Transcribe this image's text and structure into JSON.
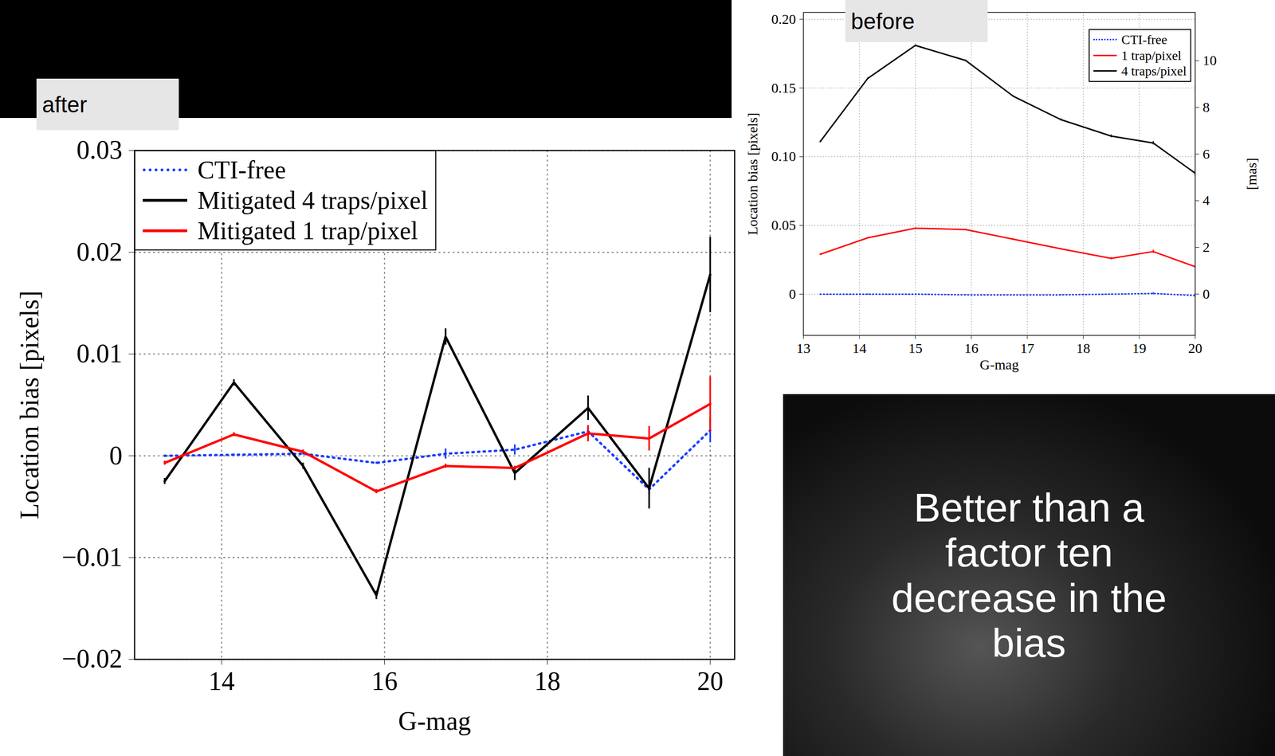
{
  "chart_data": [
    {
      "type": "line",
      "title": "after",
      "x": [
        13.3,
        14.15,
        15.0,
        15.9,
        16.75,
        17.6,
        18.5,
        19.25,
        20.0
      ],
      "xlabel": "G-mag",
      "ylabel": "Location bias [pixels]",
      "xlim": [
        12.93,
        20.3
      ],
      "xticks": [
        14,
        16,
        18,
        20
      ],
      "ylim": [
        -0.02,
        0.03
      ],
      "yticks": [
        {
          "value": -0.02,
          "label": "−0.02"
        },
        {
          "value": -0.01,
          "label": "−0.01"
        },
        0,
        0.01,
        0.02,
        0.03
      ],
      "grid": true,
      "legend": "upper left",
      "series": [
        {
          "name": "CTI-free",
          "color": "#1a3cff",
          "line_style": "dotted",
          "values": [
            0,
            0.0001,
            0.0002,
            -0.0007,
            0.0002,
            0.0006,
            0.0024,
            -0.0033,
            0.0025
          ],
          "errors": [
            0.0001,
            0.0001,
            0.0001,
            0.0001,
            0.0005,
            0.0005,
            0.0004,
            0.0005,
            0.0012
          ]
        },
        {
          "name": "Mitigated 4 traps/pixel",
          "color": "#000000",
          "line_style": "solid",
          "values": [
            -0.0025,
            0.0072,
            -0.001,
            -0.0137,
            0.0117,
            -0.0017,
            0.0047,
            -0.0032,
            0.0178
          ],
          "errors": [
            0.0003,
            0.0003,
            0.0003,
            0.0004,
            0.0008,
            0.0007,
            0.0012,
            0.002,
            0.0037
          ]
        },
        {
          "name": "Mitigated 1 trap/pixel",
          "color": "#ff0000",
          "line_style": "solid",
          "values": [
            -0.0007,
            0.0021,
            0.0004,
            -0.0035,
            -0.001,
            -0.0012,
            0.0022,
            0.0017,
            0.0051
          ],
          "errors": [
            0.0002,
            0.0002,
            0.0002,
            0.0002,
            0.0002,
            0.0002,
            0.0008,
            0.0012,
            0.0027
          ]
        }
      ]
    },
    {
      "type": "line",
      "title": "before",
      "x": [
        13.3,
        14.15,
        15.0,
        15.9,
        16.75,
        17.6,
        18.5,
        19.25,
        20.0
      ],
      "xlabel": "G-mag",
      "ylabel": "Location bias [pixels]",
      "y2label": "[mas]",
      "xlim": [
        13,
        20
      ],
      "xticks": [
        13,
        14,
        15,
        16,
        17,
        18,
        19,
        20
      ],
      "ylim": [
        -0.03,
        0.205
      ],
      "yticks": [
        0,
        0.05,
        {
          "value": 0.1,
          "label": "0.10"
        },
        0.15,
        {
          "value": 0.2,
          "label": "0.20"
        }
      ],
      "y2lim": [
        -1.77,
        12.07
      ],
      "y2ticks": [
        0,
        2,
        4,
        6,
        8,
        10
      ],
      "grid": true,
      "legend": "upper right",
      "series": [
        {
          "name": "CTI-free",
          "color": "#1a3cff",
          "line_style": "dotted",
          "values": [
            0,
            0,
            0,
            -0.0005,
            -0.0005,
            -0.0005,
            0,
            0.0005,
            -0.001
          ],
          "errors": [
            0.0003,
            0.0003,
            0.0003,
            0.0003,
            0.0003,
            0.0003,
            0.0003,
            0.0008,
            0.0012
          ]
        },
        {
          "name": "1 trap/pixel",
          "color": "#ff0000",
          "line_style": "solid",
          "values": [
            0.029,
            0.041,
            0.048,
            0.047,
            0.04,
            0.033,
            0.026,
            0.031,
            0.02
          ],
          "errors": [
            0.0005,
            0.0005,
            0.0005,
            0.0005,
            0.0005,
            0.0005,
            0.0008,
            0.0012,
            0.001
          ]
        },
        {
          "name": "4 traps/pixel",
          "color": "#000000",
          "line_style": "solid",
          "values": [
            0.111,
            0.157,
            0.181,
            0.17,
            0.144,
            0.127,
            0.115,
            0.11,
            0.088
          ],
          "errors": [
            0.0005,
            0.0005,
            0.0005,
            0.0005,
            0.0005,
            0.0008,
            0.001,
            0.0012,
            0.002
          ]
        }
      ]
    }
  ],
  "caption": "Better than a factor ten decrease in the bias"
}
